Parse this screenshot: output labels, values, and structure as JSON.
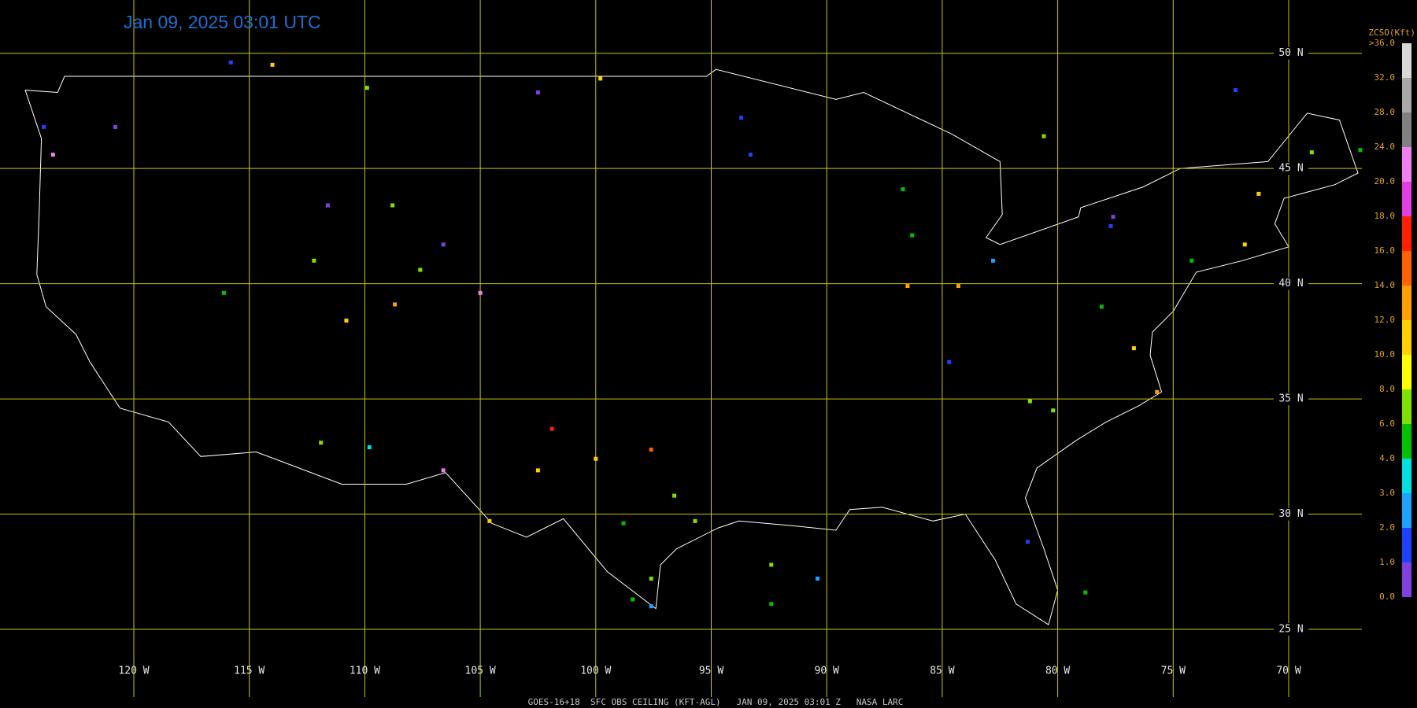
{
  "map": {
    "title": "Jan 09, 2025 03:01 UTC",
    "footer": "GOES-16+18  SFC OBS CEILING (KFT-AGL)   JAN 09, 2025 03:01 Z   NASA LARC",
    "lon_lines": [
      {
        "value": -120,
        "label": "120 W"
      },
      {
        "value": -115,
        "label": "115 W"
      },
      {
        "value": -110,
        "label": "110 W"
      },
      {
        "value": -105,
        "label": "105 W"
      },
      {
        "value": -100,
        "label": "100 W"
      },
      {
        "value": -95,
        "label": "95 W"
      },
      {
        "value": -90,
        "label": "90 W"
      },
      {
        "value": -85,
        "label": "85 W"
      },
      {
        "value": -80,
        "label": "80 W"
      },
      {
        "value": -75,
        "label": "75 W"
      },
      {
        "value": -70,
        "label": "70 W"
      }
    ],
    "lat_lines": [
      {
        "value": 50,
        "label": "50 N"
      },
      {
        "value": 45,
        "label": "45 N"
      },
      {
        "value": 40,
        "label": "40 N"
      },
      {
        "value": 35,
        "label": "35 N"
      },
      {
        "value": 30,
        "label": "30 N"
      },
      {
        "value": 25,
        "label": "25 N"
      }
    ],
    "legend": {
      "title": "ZCSO(Kft)",
      "levels": [
        {
          "value": 36,
          "label": ">36.0"
        },
        {
          "value": 32,
          "label": "32.0"
        },
        {
          "value": 28,
          "label": "28.0"
        },
        {
          "value": 24,
          "label": "24.0"
        },
        {
          "value": 20,
          "label": "20.0"
        },
        {
          "value": 18,
          "label": "18.0"
        },
        {
          "value": 16,
          "label": "16.0"
        },
        {
          "value": 14,
          "label": "14.0"
        },
        {
          "value": 12,
          "label": "12.0"
        },
        {
          "value": 10,
          "label": "10.0"
        },
        {
          "value": 8,
          "label": "8.0"
        },
        {
          "value": 6,
          "label": "6.0"
        },
        {
          "value": 4,
          "label": "4.0"
        },
        {
          "value": 3,
          "label": "3.0"
        },
        {
          "value": 2,
          "label": "2.0"
        },
        {
          "value": 1,
          "label": "1.0"
        },
        {
          "value": 0,
          "label": "0.0"
        }
      ],
      "colors": [
        "#d8d8d8",
        "#a8a8a8",
        "#808080",
        "#f080f0",
        "#e040e0",
        "#ff2000",
        "#ff6000",
        "#ffa000",
        "#ffd000",
        "#ffff00",
        "#80e000",
        "#00c000",
        "#00e0e0",
        "#20a0ff",
        "#2040ff",
        "#8040e0"
      ]
    },
    "stations": [
      {
        "lon": -96.6,
        "lat": 30.8,
        "value": 7
      },
      {
        "lon": -95.7,
        "lat": 29.7,
        "value": 7
      },
      {
        "lon": -98.8,
        "lat": 29.6,
        "value": 4.5
      },
      {
        "lon": -97.6,
        "lat": 27.2,
        "value": 7
      },
      {
        "lon": -101.9,
        "lat": 33.7,
        "value": 17
      },
      {
        "lon": -97.6,
        "lat": 32.8,
        "value": 15
      },
      {
        "lon": -100,
        "lat": 32.4,
        "value": 11
      },
      {
        "lon": -102.5,
        "lat": 31.9,
        "value": 11
      },
      {
        "lon": -104.6,
        "lat": 29.7,
        "value": 11
      },
      {
        "lon": -106.6,
        "lat": 31.9,
        "value": 21
      },
      {
        "lon": -109.8,
        "lat": 32.9,
        "value": 3
      },
      {
        "lon": -111.9,
        "lat": 33.1,
        "value": 7
      },
      {
        "lon": -116.1,
        "lat": 39.6,
        "value": 4.5
      },
      {
        "lon": -112.2,
        "lat": 41,
        "value": 7
      },
      {
        "lon": -110.8,
        "lat": 38.4,
        "value": 11
      },
      {
        "lon": -108.7,
        "lat": 39.1,
        "value": 13
      },
      {
        "lon": -105,
        "lat": 39.6,
        "value": 21
      },
      {
        "lon": -107.6,
        "lat": 40.6,
        "value": 7
      },
      {
        "lon": -106.6,
        "lat": 41.7,
        "value": 0.5
      },
      {
        "lon": -108.8,
        "lat": 43.4,
        "value": 7
      },
      {
        "lon": -111.6,
        "lat": 43.4,
        "value": 0.5
      },
      {
        "lon": -114,
        "lat": 49.5,
        "value": 11
      },
      {
        "lon": -115.8,
        "lat": 49.6,
        "value": 1.5
      },
      {
        "lon": -120.8,
        "lat": 46.8,
        "value": 0.5
      },
      {
        "lon": -123.5,
        "lat": 45.6,
        "value": 21
      },
      {
        "lon": -123.9,
        "lat": 46.8,
        "value": 1.5
      },
      {
        "lon": -109.9,
        "lat": 48.5,
        "value": 7
      },
      {
        "lon": -102.5,
        "lat": 48.3,
        "value": 0.5
      },
      {
        "lon": -99.8,
        "lat": 48.9,
        "value": 11
      },
      {
        "lon": -93.7,
        "lat": 47.2,
        "value": 1.5
      },
      {
        "lon": -93.3,
        "lat": 45.6,
        "value": 1.5
      },
      {
        "lon": -86.7,
        "lat": 44.1,
        "value": 4.5
      },
      {
        "lon": -86.3,
        "lat": 42.1,
        "value": 4.5
      },
      {
        "lon": -86.5,
        "lat": 39.9,
        "value": 13
      },
      {
        "lon": -84.3,
        "lat": 39.9,
        "value": 13
      },
      {
        "lon": -82.8,
        "lat": 41,
        "value": 2.5
      },
      {
        "lon": -84.7,
        "lat": 36.6,
        "value": 1.5
      },
      {
        "lon": -81.2,
        "lat": 34.9,
        "value": 7
      },
      {
        "lon": -80.2,
        "lat": 34.5,
        "value": 7
      },
      {
        "lon": -78.1,
        "lat": 39,
        "value": 4.5
      },
      {
        "lon": -76.7,
        "lat": 37.2,
        "value": 11
      },
      {
        "lon": -75.7,
        "lat": 35.3,
        "value": 13
      },
      {
        "lon": -77.7,
        "lat": 42.5,
        "value": 1.5
      },
      {
        "lon": -74.2,
        "lat": 41,
        "value": 4.5
      },
      {
        "lon": -71.9,
        "lat": 41.7,
        "value": 11
      },
      {
        "lon": -71.3,
        "lat": 43.9,
        "value": 11
      },
      {
        "lon": -69,
        "lat": 45.7,
        "value": 7
      },
      {
        "lon": -66.9,
        "lat": 45.8,
        "value": 4.5
      },
      {
        "lon": -72.3,
        "lat": 48.4,
        "value": 1.5
      },
      {
        "lon": -80.6,
        "lat": 46.4,
        "value": 7
      },
      {
        "lon": -77.6,
        "lat": 42.9,
        "value": 0.5
      },
      {
        "lon": -81.3,
        "lat": 28.8,
        "value": 1.5
      },
      {
        "lon": -92.4,
        "lat": 27.8,
        "value": 7
      },
      {
        "lon": -92.4,
        "lat": 26.1,
        "value": 4.5
      },
      {
        "lon": -90.4,
        "lat": 27.2,
        "value": 2.5
      },
      {
        "lon": -78.8,
        "lat": 26.6,
        "value": 4.5
      },
      {
        "lon": -97.6,
        "lat": 26,
        "value": 2
      },
      {
        "lon": -98.4,
        "lat": 26.3,
        "value": 4.5
      }
    ]
  }
}
